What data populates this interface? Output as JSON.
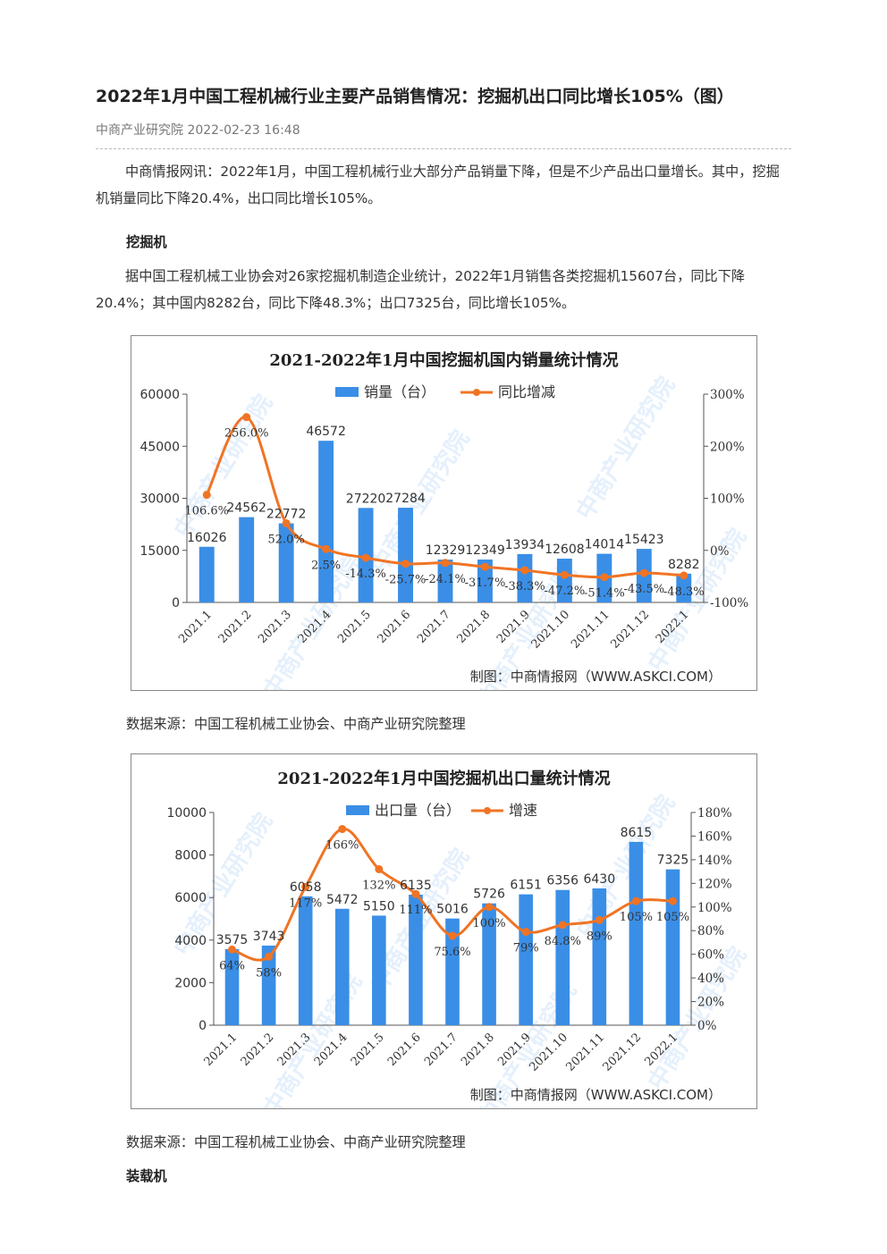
{
  "article": {
    "title": "2022年1月中国工程机械行业主要产品销售情况：挖掘机出口同比增长105%（图）",
    "meta": "中商产业研究院 2022-02-23 16:48",
    "intro": "中商情报网讯：2022年1月，中国工程机械行业大部分产品销量下降，但是不少产品出口量增长。其中，挖掘机销量同比下降20.4%，出口同比增长105%。",
    "section1_heading": "挖掘机",
    "section1_para": "据中国工程机械工业协会对26家挖掘机制造企业统计，2022年1月销售各类挖掘机15607台，同比下降20.4%；其中国内8282台，同比下降48.3%；出口7325台，同比增长105%。",
    "source1": "数据来源：中国工程机械工业协会、中商产业研究院整理",
    "source2": "数据来源：中国工程机械工业协会、中商产业研究院整理",
    "section2_heading": "装载机"
  },
  "watermark": "中商产业研究院",
  "chart_data": [
    {
      "type": "bar",
      "title": "2021-2022年1月中国挖掘机国内销量统计情况",
      "credit": "制图：中商情报网（WWW.ASKCI.COM）",
      "categories": [
        "2021.1",
        "2021.2",
        "2021.3",
        "2021.4",
        "2021.5",
        "2021.6",
        "2021.7",
        "2021.8",
        "2021.9",
        "2021.10",
        "2021.11",
        "2021.12",
        "2022.1"
      ],
      "series": [
        {
          "name": "销量（台）",
          "kind": "bar",
          "axis": "left",
          "color": "#3a8ee6",
          "values": [
            16026,
            24562,
            22772,
            46572,
            27220,
            27284,
            12329,
            12349,
            13934,
            12608,
            14014,
            15423,
            8282
          ],
          "labels": [
            "16026",
            "24562",
            "22772",
            "46572",
            "27220",
            "27284",
            "12329",
            "12349",
            "13934",
            "12608",
            "14014",
            "15423",
            "8282"
          ]
        },
        {
          "name": "同比增减",
          "kind": "line",
          "axis": "right",
          "color": "#f07424",
          "values": [
            106.6,
            256.0,
            52.0,
            2.5,
            -14.3,
            -25.7,
            -24.1,
            -31.7,
            -38.3,
            -47.2,
            -51.4,
            -43.5,
            -48.3
          ],
          "labels": [
            "106.6%",
            "256.0%",
            "52.0%",
            "2.5%",
            "-14.3%",
            "-25.7%",
            "-24.1%",
            "-31.7%",
            "-38.3%",
            "-47.2%",
            "-51.4%",
            "-43.5%",
            "-48.3%"
          ]
        }
      ],
      "yleft": {
        "min": 0,
        "max": 60000,
        "ticks": [
          "0",
          "15000",
          "30000",
          "45000",
          "60000"
        ]
      },
      "yright": {
        "min": -100,
        "max": 300,
        "ticks": [
          "-100%",
          "0%",
          "100%",
          "200%",
          "300%"
        ]
      },
      "legend": "top-center"
    },
    {
      "type": "bar",
      "title": "2021-2022年1月中国挖掘机出口量统计情况",
      "credit": "制图：中商情报网（WWW.ASKCI.COM）",
      "categories": [
        "2021.1",
        "2021.2",
        "2021.3",
        "2021.4",
        "2021.5",
        "2021.6",
        "2021.7",
        "2021.8",
        "2021.9",
        "2021.10",
        "2021.11",
        "2021.12",
        "2022.1"
      ],
      "series": [
        {
          "name": "出口量（台）",
          "kind": "bar",
          "axis": "left",
          "color": "#3a8ee6",
          "values": [
            3575,
            3743,
            6058,
            5472,
            5150,
            6135,
            5016,
            5726,
            6151,
            6356,
            6430,
            8615,
            7325
          ],
          "labels": [
            "3575",
            "3743",
            "6058",
            "5472",
            "5150",
            "6135",
            "5016",
            "5726",
            "6151",
            "6356",
            "6430",
            "8615",
            "7325"
          ]
        },
        {
          "name": "增速",
          "kind": "line",
          "axis": "right",
          "color": "#f07424",
          "values": [
            64,
            58,
            117,
            166,
            132,
            111,
            75.6,
            100,
            79,
            84.8,
            89,
            105,
            105
          ],
          "labels": [
            "64%",
            "58%",
            "117%",
            "166%",
            "132%",
            "111%",
            "75.6%",
            "100%",
            "79%",
            "84.8%",
            "89%",
            "105%",
            "105%"
          ]
        }
      ],
      "yleft": {
        "min": 0,
        "max": 10000,
        "ticks": [
          "0",
          "2000",
          "4000",
          "6000",
          "8000",
          "10000"
        ]
      },
      "yright": {
        "min": 0,
        "max": 180,
        "ticks": [
          "0%",
          "20%",
          "40%",
          "60%",
          "80%",
          "100%",
          "120%",
          "140%",
          "160%",
          "180%"
        ]
      },
      "legend": "top-center"
    }
  ]
}
